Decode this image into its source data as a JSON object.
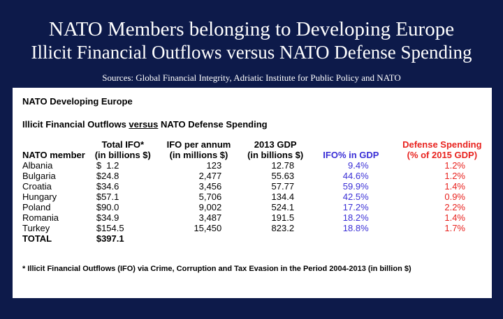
{
  "title_line1": "NATO Members belonging to Developing Europe",
  "title_line2": "Illicit Financial Outflows versus NATO Defense Spending",
  "sources": "Sources: Global Financial Integrity, Adriatic Institute for Public Policy and NATO",
  "panel": {
    "heading": "NATO Developing Europe",
    "subheading_pre": "Illicit Financial Outflows ",
    "subheading_versus": "versus",
    "subheading_post": " NATO Defense Spending"
  },
  "table": {
    "headers": {
      "member": "NATO member",
      "ifo_l1": "Total IFO*",
      "ifo_l2": "(in billions $)",
      "annum_l1": "IFO per annum",
      "annum_l2": "(in millions $)",
      "gdp_l1": "2013 GDP",
      "gdp_l2": "(in billions $)",
      "ifo_pct": "IFO% in GDP",
      "def_l1": "Defense Spending",
      "def_l2": "(% of 2015 GDP)"
    },
    "rows": [
      {
        "member": "Albania",
        "ifo": "$  1.2",
        "annum": "123",
        "gdp": "12.78",
        "pct": "9.4%",
        "def": "1.2%"
      },
      {
        "member": "Bulgaria",
        "ifo": "$24.8",
        "annum": "2,477",
        "gdp": "55.63",
        "pct": "44.6%",
        "def": "1.2%"
      },
      {
        "member": "Croatia",
        "ifo": "$34.6",
        "annum": "3,456",
        "gdp": "57.77",
        "pct": "59.9%",
        "def": "1.4%"
      },
      {
        "member": "Hungary",
        "ifo": "$57.1",
        "annum": "5,706",
        "gdp": "134.4",
        "pct": "42.5%",
        "def": "0.9%"
      },
      {
        "member": "Poland",
        "ifo": "$90.0",
        "annum": "9,002",
        "gdp": "524.1",
        "pct": "17.2%",
        "def": "2.2%"
      },
      {
        "member": "Romania",
        "ifo": "$34.9",
        "annum": "3,487",
        "gdp": "191.5",
        "pct": "18.2%",
        "def": "1.4%"
      },
      {
        "member": "Turkey",
        "ifo": "$154.5",
        "annum": "15,450",
        "gdp": "823.2",
        "pct": "18.8%",
        "def": "1.7%"
      }
    ],
    "total": {
      "label": "TOTAL",
      "ifo": "$397.1"
    }
  },
  "footnote": "* Illicit Financial Outflows (IFO) via Crime, Corruption and Tax Evasion in the Period 2004-2013 (in billion $)",
  "colors": {
    "background": "#0d1a4a",
    "ifo_pct": "#3a2fd6",
    "defense": "#e8231f"
  }
}
